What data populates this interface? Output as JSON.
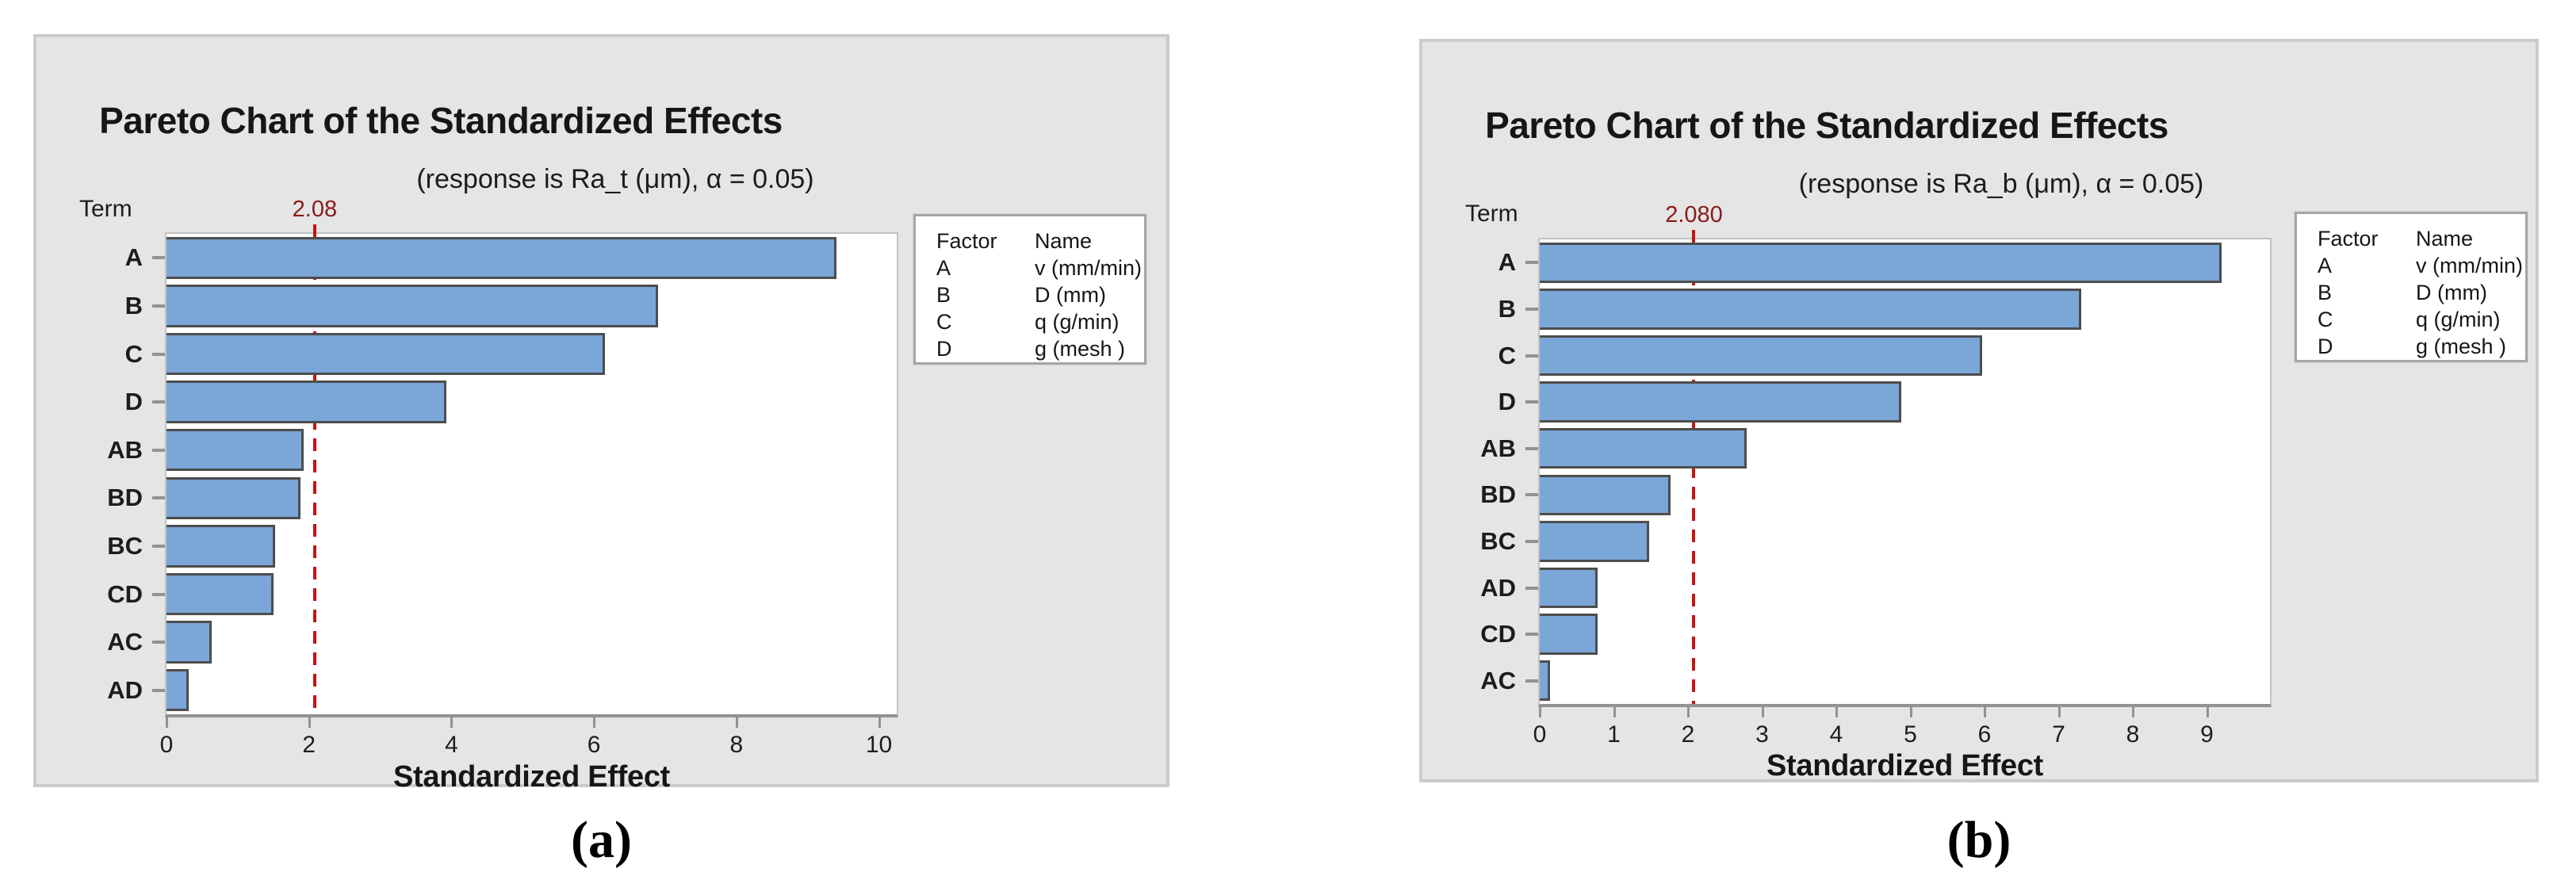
{
  "colors": {
    "panel_bg": "#e5e5e5",
    "panel_border": "#cbcbcb",
    "plot_bg": "#ffffff",
    "plot_border": "#c2c2c2",
    "axis": "#929292",
    "bar_fill": "#7ba6d8",
    "bar_border": "#4d4d4d",
    "ref_line": "#c01616",
    "ref_label": "#8b1a1a",
    "text": "#1f1f1f"
  },
  "chart_data": [
    {
      "type": "bar",
      "orientation": "horizontal",
      "title": "Pareto Chart of the Standardized Effects",
      "subtitle": "(response is Ra_t (μm), α = 0.05)",
      "ylabel": "Term",
      "xlabel": "Standardized Effect",
      "categories": [
        "A",
        "B",
        "C",
        "D",
        "AB",
        "BD",
        "BC",
        "CD",
        "AC",
        "AD"
      ],
      "values": [
        9.4,
        6.9,
        6.15,
        3.93,
        1.93,
        1.88,
        1.52,
        1.5,
        0.63,
        0.31
      ],
      "xlim": [
        0,
        10.25
      ],
      "xticks": [
        0,
        2,
        4,
        6,
        8,
        10
      ],
      "grid": false,
      "reference_line": 2.08,
      "reference_label": "2.08",
      "legend_position": "right",
      "legend": {
        "headers": [
          "Factor",
          "Name"
        ],
        "rows": [
          [
            "A",
            "v (mm/min)"
          ],
          [
            "B",
            "D (mm)"
          ],
          [
            "C",
            "q (g/min)"
          ],
          [
            "D",
            "g (mesh )"
          ]
        ]
      },
      "caption": "(a)"
    },
    {
      "type": "bar",
      "orientation": "horizontal",
      "title": "Pareto Chart of the Standardized Effects",
      "subtitle": "(response is Ra_b (μm), α = 0.05)",
      "ylabel": "Term",
      "xlabel": "Standardized Effect",
      "categories": [
        "A",
        "B",
        "C",
        "D",
        "AB",
        "BD",
        "BC",
        "AD",
        "CD",
        "AC"
      ],
      "values": [
        9.2,
        7.3,
        5.97,
        4.88,
        2.79,
        1.77,
        1.48,
        0.78,
        0.78,
        0.14
      ],
      "xlim": [
        0,
        9.85
      ],
      "xticks": [
        0,
        1,
        2,
        3,
        4,
        5,
        6,
        7,
        8,
        9
      ],
      "grid": false,
      "reference_line": 2.08,
      "reference_label": "2.080",
      "legend_position": "right",
      "legend": {
        "headers": [
          "Factor",
          "Name"
        ],
        "rows": [
          [
            "A",
            "v (mm/min)"
          ],
          [
            "B",
            "D (mm)"
          ],
          [
            "C",
            "q (g/min)"
          ],
          [
            "D",
            "g (mesh )"
          ]
        ]
      },
      "caption": "(b)"
    }
  ]
}
